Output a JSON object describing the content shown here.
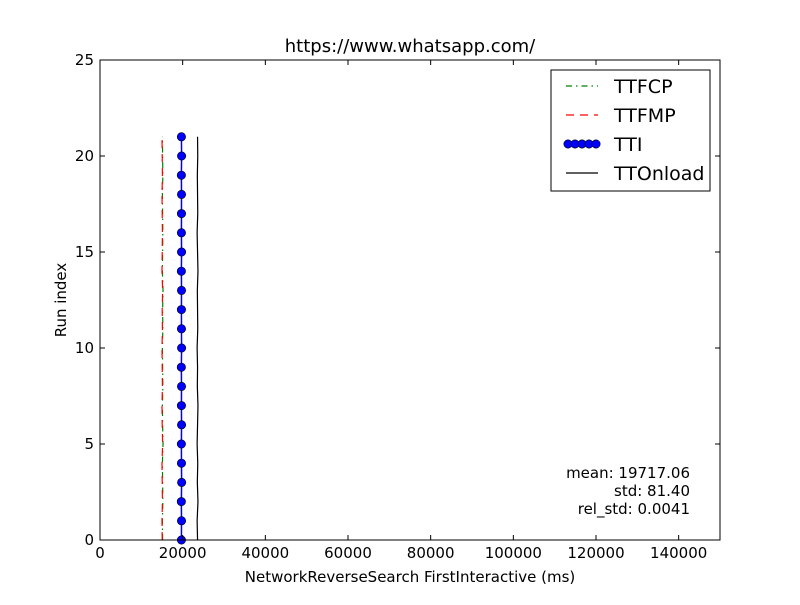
{
  "chart_data": {
    "type": "line",
    "title": "https://www.whatsapp.com/",
    "xlabel": "NetworkReverseSearch FirstInteractive (ms)",
    "ylabel": "Run index",
    "xlim": [
      0,
      150000
    ],
    "ylim": [
      0,
      25
    ],
    "xticks": [
      0,
      20000,
      40000,
      60000,
      80000,
      100000,
      120000,
      140000
    ],
    "yticks": [
      0,
      5,
      10,
      15,
      20,
      25
    ],
    "grid": false,
    "legend_position": "top-right",
    "series": [
      {
        "name": "TTFCP",
        "style": "dash-dot",
        "color": "#008000",
        "marker": "none",
        "x": [
          15150,
          15100,
          15200,
          15150,
          15100,
          15250,
          15150,
          15100,
          15200,
          15150,
          15100,
          15200,
          15150,
          15250,
          15100,
          15150,
          15200,
          15150,
          15100,
          15200,
          15150,
          15100
        ],
        "y": [
          0,
          1,
          2,
          3,
          4,
          5,
          6,
          7,
          8,
          9,
          10,
          11,
          12,
          13,
          14,
          15,
          16,
          17,
          18,
          19,
          20,
          21
        ]
      },
      {
        "name": "TTFMP",
        "style": "dashed",
        "color": "#ff0000",
        "marker": "none",
        "x": [
          15050,
          15000,
          15100,
          15050,
          15000,
          15150,
          15050,
          15000,
          15100,
          15050,
          15000,
          15100,
          15050,
          15150,
          15000,
          15050,
          15100,
          15050,
          15000,
          15100,
          15050,
          15000
        ],
        "y": [
          0,
          1,
          2,
          3,
          4,
          5,
          6,
          7,
          8,
          9,
          10,
          11,
          12,
          13,
          14,
          15,
          16,
          17,
          18,
          19,
          20,
          21
        ]
      },
      {
        "name": "TTI",
        "style": "solid",
        "color": "#0000ff",
        "marker": "circle",
        "x": [
          19700,
          19720,
          19680,
          19750,
          19710,
          19690,
          19730,
          19700,
          19720,
          19680,
          19740,
          19710,
          19700,
          19720,
          19690,
          19730,
          19700,
          19710,
          19720,
          19690,
          19740,
          19700
        ],
        "y": [
          0,
          1,
          2,
          3,
          4,
          5,
          6,
          7,
          8,
          9,
          10,
          11,
          12,
          13,
          14,
          15,
          16,
          17,
          18,
          19,
          20,
          21
        ]
      },
      {
        "name": "TTOnload",
        "style": "solid",
        "color": "#000000",
        "marker": "none",
        "x": [
          23600,
          23500,
          23700,
          23550,
          23650,
          23500,
          23600,
          23700,
          23550,
          23600,
          23500,
          23650,
          23600,
          23550,
          23700,
          23600,
          23500,
          23650,
          23600,
          23550,
          23650,
          23600
        ],
        "y": [
          0,
          1,
          2,
          3,
          4,
          5,
          6,
          7,
          8,
          9,
          10,
          11,
          12,
          13,
          14,
          15,
          16,
          17,
          18,
          19,
          20,
          21
        ]
      }
    ],
    "annotations": [
      "mean: 19717.06",
      "std: 81.40",
      "rel_std: 0.0041"
    ]
  }
}
